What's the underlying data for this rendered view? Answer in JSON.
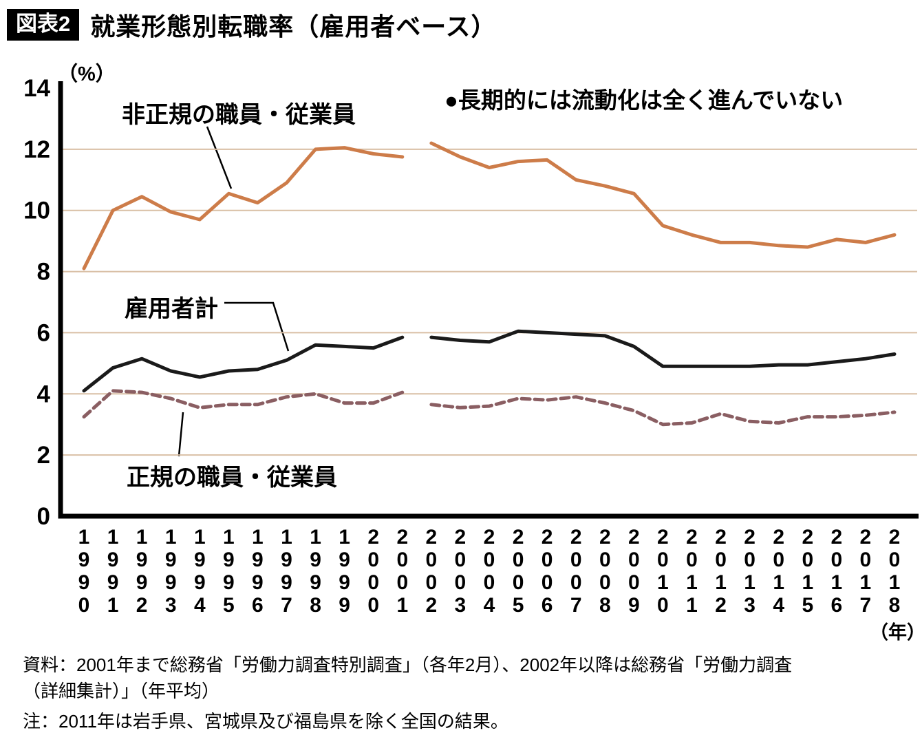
{
  "header": {
    "badge": "図表2",
    "title": "就業形態別転職率（雇用者ベース）"
  },
  "chart_data": {
    "type": "line",
    "title": "就業形態別転職率（雇用者ベース）",
    "unit_y": "（%）",
    "unit_x": "（年）",
    "annotation": "●長期的には流動化は全く進んでいない",
    "ylim": [
      0,
      14
    ],
    "yticks": [
      0,
      2,
      4,
      6,
      8,
      10,
      12,
      14
    ],
    "gridlines": [
      2,
      4,
      6,
      8,
      10,
      12
    ],
    "grid_color": "#d9bfa5",
    "axis_color": "#000000",
    "gap_after_year": "2001",
    "years": [
      "1990",
      "1991",
      "1992",
      "1993",
      "1994",
      "1995",
      "1996",
      "1997",
      "1998",
      "1999",
      "2000",
      "2001",
      "2002",
      "2003",
      "2004",
      "2005",
      "2006",
      "2007",
      "2008",
      "2009",
      "2010",
      "2011",
      "2012",
      "2013",
      "2014",
      "2015",
      "2016",
      "2017",
      "2018"
    ],
    "series": [
      {
        "id": "non-regular-staff",
        "name": "非正規の職員・従業員",
        "color": "#cd7c49",
        "style": "solid",
        "values": [
          8.1,
          10.0,
          10.45,
          9.95,
          9.7,
          10.55,
          10.25,
          10.9,
          12.0,
          12.05,
          11.85,
          11.75,
          12.2,
          11.75,
          11.4,
          11.6,
          11.65,
          11.0,
          10.8,
          10.55,
          9.5,
          9.2,
          8.95,
          8.95,
          8.85,
          8.8,
          9.05,
          8.95,
          9.2
        ]
      },
      {
        "id": "all-employees",
        "name": "雇用者計",
        "color": "#1a1a1a",
        "style": "solid",
        "values": [
          4.1,
          4.85,
          5.15,
          4.75,
          4.55,
          4.75,
          4.8,
          5.1,
          5.6,
          5.55,
          5.5,
          5.85,
          5.85,
          5.75,
          5.7,
          6.05,
          6.0,
          5.95,
          5.9,
          5.55,
          4.9,
          4.9,
          4.9,
          4.9,
          4.95,
          4.95,
          5.05,
          5.15,
          5.3
        ]
      },
      {
        "id": "regular-staff",
        "name": "正規の職員・従業員",
        "color": "#8a5e62",
        "style": "dashed",
        "values": [
          3.25,
          4.1,
          4.05,
          3.85,
          3.55,
          3.65,
          3.65,
          3.9,
          4.0,
          3.7,
          3.7,
          4.05,
          3.65,
          3.55,
          3.6,
          3.85,
          3.8,
          3.9,
          3.7,
          3.45,
          3.0,
          3.05,
          3.35,
          3.1,
          3.05,
          3.25,
          3.25,
          3.3,
          3.4
        ]
      }
    ]
  },
  "footer": {
    "source": "資料：2001年まで総務省「労働力調査特別調査」（各年2月）、2002年以降は総務省「労働力調査（詳細集計）」（年平均）",
    "note": "注：2011年は岩手県、宮城県及び福島県を除く全国の結果。"
  }
}
